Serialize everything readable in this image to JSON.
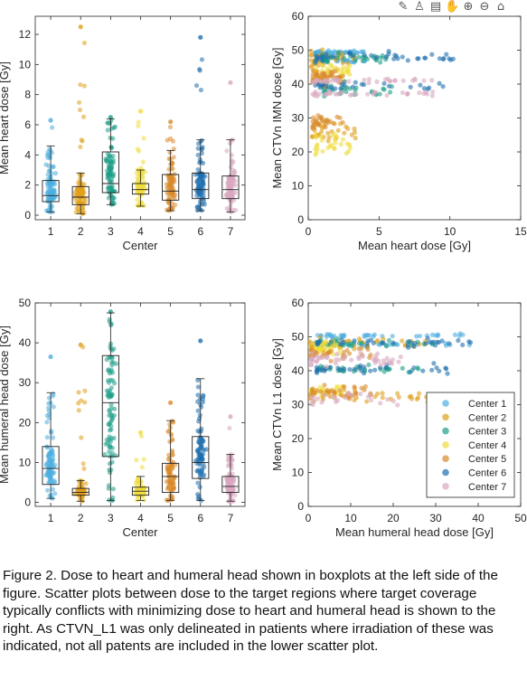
{
  "toolbar": {
    "icons": [
      "brush-icon",
      "datatip-icon",
      "save-icon",
      "pan-hand-icon",
      "zoom-in-icon",
      "zoom-out-icon",
      "home-icon"
    ],
    "glyphs": [
      "✎",
      "♙",
      "▤",
      "✋",
      "⊕",
      "⊖",
      "⌂"
    ]
  },
  "centers": [
    "Center 1",
    "Center 2",
    "Center 3",
    "Center 4",
    "Center 5",
    "Center 6",
    "Center 7"
  ],
  "center_colors": [
    "#4daee0",
    "#e0a01c",
    "#1f9e89",
    "#f0dc3c",
    "#d98a2b",
    "#1f6fae",
    "#d8a8c0"
  ],
  "chart_data": [
    {
      "id": "box_heart",
      "type": "box",
      "xlabel": "Center",
      "ylabel": "Mean heart dose [Gy]",
      "categories": [
        "1",
        "2",
        "3",
        "4",
        "5",
        "6",
        "7"
      ],
      "ylim": [
        -0.3,
        13.2
      ],
      "yticks": [
        0,
        2,
        4,
        6,
        8,
        10,
        12
      ],
      "boxes": [
        {
          "q1": 0.9,
          "median": 1.3,
          "q3": 2.3,
          "wlow": 0.2,
          "whigh": 4.6,
          "pmin": 0.2,
          "pmax": 6.3
        },
        {
          "q1": 0.7,
          "median": 1.2,
          "q3": 1.9,
          "wlow": 0.1,
          "whigh": 2.8,
          "pmin": 0.1,
          "pmax": 12.5
        },
        {
          "q1": 1.5,
          "median": 2.1,
          "q3": 4.2,
          "wlow": 0.7,
          "whigh": 6.4,
          "pmin": 0.7,
          "pmax": 6.5
        },
        {
          "q1": 1.4,
          "median": 1.7,
          "q3": 2.1,
          "wlow": 0.6,
          "whigh": 3.0,
          "pmin": 0.6,
          "pmax": 6.9
        },
        {
          "q1": 1.0,
          "median": 1.6,
          "q3": 2.7,
          "wlow": 0.3,
          "whigh": 4.3,
          "pmin": 0.3,
          "pmax": 6.2
        },
        {
          "q1": 1.1,
          "median": 1.7,
          "q3": 2.8,
          "wlow": 0.3,
          "whigh": 5.0,
          "pmin": 0.3,
          "pmax": 11.8
        },
        {
          "q1": 1.1,
          "median": 1.7,
          "q3": 2.6,
          "wlow": 0.2,
          "whigh": 5.0,
          "pmin": 0.2,
          "pmax": 8.8
        }
      ]
    },
    {
      "id": "scatter_heart",
      "type": "scatter",
      "xlabel": "Mean heart dose [Gy]",
      "ylabel": "Mean CTVn IMN dose [Gy]",
      "xlim": [
        0,
        15
      ],
      "ylim": [
        0,
        60
      ],
      "xticks": [
        0,
        5,
        10,
        15
      ],
      "yticks": [
        0,
        10,
        20,
        30,
        40,
        50,
        60
      ],
      "clusters": [
        {
          "series": 0,
          "x": [
            0.5,
            4.0
          ],
          "y": [
            46,
            50
          ]
        },
        {
          "series": 1,
          "x": [
            0.2,
            3.5
          ],
          "y": [
            20,
            52
          ]
        },
        {
          "series": 2,
          "x": [
            1.0,
            6.0
          ],
          "y": [
            35,
            50
          ]
        },
        {
          "series": 3,
          "x": [
            0.5,
            3.0
          ],
          "y": [
            16,
            48
          ]
        },
        {
          "series": 4,
          "x": [
            0.3,
            2.5
          ],
          "y": [
            25,
            45
          ]
        },
        {
          "series": 5,
          "x": [
            0.5,
            11.0
          ],
          "y": [
            37,
            50
          ]
        },
        {
          "series": 6,
          "x": [
            0.3,
            9.0
          ],
          "y": [
            36,
            42
          ]
        }
      ]
    },
    {
      "id": "box_humeral",
      "type": "box",
      "xlabel": "Center",
      "ylabel": "Mean humeral head dose [Gy]",
      "categories": [
        "1",
        "2",
        "3",
        "4",
        "5",
        "6",
        "7"
      ],
      "ylim": [
        -1,
        50
      ],
      "yticks": [
        0,
        10,
        20,
        30,
        40,
        50
      ],
      "boxes": [
        {
          "q1": 4.5,
          "median": 8.5,
          "q3": 14.0,
          "wlow": 1.0,
          "whigh": 27.5,
          "pmin": 1.0,
          "pmax": 36.5
        },
        {
          "q1": 1.8,
          "median": 2.5,
          "q3": 3.5,
          "wlow": 0.3,
          "whigh": 5.5,
          "pmin": 0.3,
          "pmax": 39.5
        },
        {
          "q1": 11.5,
          "median": 25.0,
          "q3": 36.8,
          "wlow": 0.5,
          "whigh": 47.5,
          "pmin": 0.5,
          "pmax": 47.8
        },
        {
          "q1": 1.8,
          "median": 2.8,
          "q3": 3.8,
          "wlow": 0.5,
          "whigh": 6.5,
          "pmin": 0.5,
          "pmax": 17.5
        },
        {
          "q1": 2.5,
          "median": 6.5,
          "q3": 9.8,
          "wlow": 0.5,
          "whigh": 20.5,
          "pmin": 0.5,
          "pmax": 25.0
        },
        {
          "q1": 6.0,
          "median": 10.0,
          "q3": 16.5,
          "wlow": 0.5,
          "whigh": 31.0,
          "pmin": 0.5,
          "pmax": 40.5
        },
        {
          "q1": 2.5,
          "median": 4.0,
          "q3": 6.5,
          "wlow": 0.3,
          "whigh": 12.0,
          "pmin": 0.3,
          "pmax": 21.5
        }
      ]
    },
    {
      "id": "scatter_humeral",
      "type": "scatter",
      "xlabel": "Mean humeral head dose [Gy]",
      "ylabel": "Mean CTVn L1 dose [Gy]",
      "xlim": [
        0,
        50
      ],
      "ylim": [
        0,
        60
      ],
      "xticks": [
        0,
        10,
        20,
        30,
        40,
        50
      ],
      "yticks": [
        0,
        10,
        20,
        30,
        40,
        50,
        60
      ],
      "legend_position": "lower-right",
      "clusters": [
        {
          "series": 0,
          "x": [
            2,
            38
          ],
          "y": [
            47,
            51
          ]
        },
        {
          "series": 1,
          "x": [
            0.3,
            30
          ],
          "y": [
            28,
            52
          ]
        },
        {
          "series": 2,
          "x": [
            2,
            30
          ],
          "y": [
            38,
            50
          ]
        },
        {
          "series": 3,
          "x": [
            0.5,
            8
          ],
          "y": [
            30,
            50
          ]
        },
        {
          "series": 4,
          "x": [
            0.5,
            15
          ],
          "y": [
            30,
            48
          ]
        },
        {
          "series": 5,
          "x": [
            2,
            40
          ],
          "y": [
            38,
            50
          ]
        },
        {
          "series": 6,
          "x": [
            0.5,
            22
          ],
          "y": [
            28,
            46
          ]
        }
      ]
    }
  ],
  "caption": "Figure 2. Dose to heart and humeral head shown in boxplots at the left side of the figure. Scatter plots between dose to the target regions where target coverage typically conflicts with minimizing dose to heart and humeral head is shown to the right.  As CTVN_L1 was only delineated in patients where irradiation of these was indicated, not all patents are included in the lower scatter plot."
}
